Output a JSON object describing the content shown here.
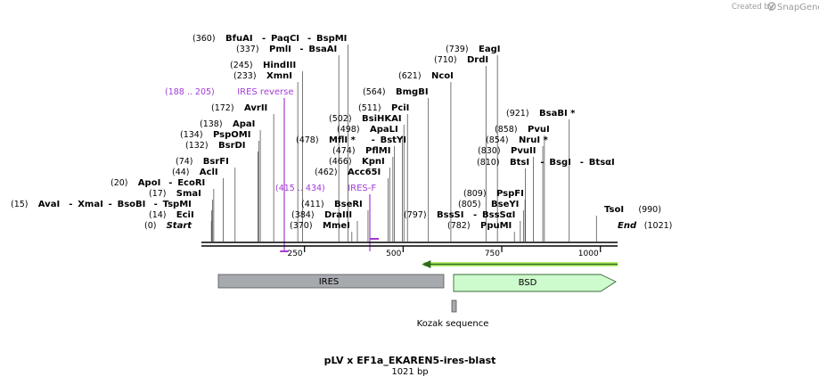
{
  "credit": {
    "text": "Created by",
    "brand": "SnapGene"
  },
  "map": {
    "title": "pLV x EF1a_EKAREN5-ires-blast",
    "length_label": "1021 bp",
    "total_bp": 1021,
    "ticks": [
      {
        "label": "250",
        "bp": 250
      },
      {
        "label": "500",
        "bp": 500
      },
      {
        "label": "750",
        "bp": 750
      },
      {
        "label": "1000",
        "bp": 1000
      }
    ],
    "sites": [
      {
        "id": "start",
        "pos_text": "(0)",
        "names": [
          {
            "text": "Start",
            "italic": true
          }
        ],
        "bp": 0
      },
      {
        "id": "ecoi",
        "pos_text": "(14)",
        "names": [
          {
            "text": "EciI"
          }
        ],
        "bp": 14
      },
      {
        "id": "avai",
        "pos_text": "(15)",
        "names": [
          {
            "text": "AvaI"
          },
          {
            "text": "XmaI"
          },
          {
            "text": "BsoBI"
          },
          {
            "text": "TspMI"
          }
        ],
        "bp": 15
      },
      {
        "id": "smai",
        "pos_text": "(17)",
        "names": [
          {
            "text": "SmaI"
          }
        ],
        "bp": 17
      },
      {
        "id": "apoi",
        "pos_text": "(20)",
        "names": [
          {
            "text": "ApoI"
          },
          {
            "text": "EcoRI"
          }
        ],
        "bp": 20
      },
      {
        "id": "acli",
        "pos_text": "(44)",
        "names": [
          {
            "text": "AclI"
          }
        ],
        "bp": 44
      },
      {
        "id": "bsrfi",
        "pos_text": "(74)",
        "names": [
          {
            "text": "BsrFI"
          }
        ],
        "bp": 74
      },
      {
        "id": "bsrdi",
        "pos_text": "(132)",
        "names": [
          {
            "text": "BsrDI"
          }
        ],
        "bp": 132
      },
      {
        "id": "pspomi",
        "pos_text": "(134)",
        "names": [
          {
            "text": "PspOMI"
          }
        ],
        "bp": 134
      },
      {
        "id": "apai",
        "pos_text": "(138)",
        "names": [
          {
            "text": "ApaI"
          }
        ],
        "bp": 138
      },
      {
        "id": "avrii",
        "pos_text": "(172)",
        "names": [
          {
            "text": "AvrII"
          }
        ],
        "bp": 172
      },
      {
        "id": "xmni",
        "pos_text": "(233)",
        "names": [
          {
            "text": "XmnI"
          }
        ],
        "bp": 233
      },
      {
        "id": "hindiii",
        "pos_text": "(245)",
        "names": [
          {
            "text": "HindIII"
          }
        ],
        "bp": 245
      },
      {
        "id": "pmli",
        "pos_text": "(337)",
        "names": [
          {
            "text": "PmlI"
          },
          {
            "text": "BsaAI"
          }
        ],
        "bp": 337
      },
      {
        "id": "bfuai",
        "pos_text": "(360)",
        "names": [
          {
            "text": "BfuAI"
          },
          {
            "text": "PaqCI"
          },
          {
            "text": "BspMI"
          }
        ],
        "bp": 360
      },
      {
        "id": "mmei",
        "pos_text": "(370)",
        "names": [
          {
            "text": "MmeI"
          }
        ],
        "bp": 370
      },
      {
        "id": "draiii",
        "pos_text": "(384)",
        "names": [
          {
            "text": "DraIII"
          }
        ],
        "bp": 384
      },
      {
        "id": "bseri",
        "pos_text": "(411)",
        "names": [
          {
            "text": "BseRI"
          }
        ],
        "bp": 411
      },
      {
        "id": "acc65i",
        "pos_text": "(462)",
        "names": [
          {
            "text": "Acc65I"
          }
        ],
        "bp": 462
      },
      {
        "id": "kpni",
        "pos_text": "(466)",
        "names": [
          {
            "text": "KpnI"
          }
        ],
        "bp": 466
      },
      {
        "id": "pflmi",
        "pos_text": "(474)",
        "names": [
          {
            "text": "PflMI"
          }
        ],
        "bp": 474
      },
      {
        "id": "mfli",
        "pos_text": "(478)",
        "names": [
          {
            "text": "MflI *"
          },
          {
            "text": "BstYI"
          }
        ],
        "bp": 478
      },
      {
        "id": "apali",
        "pos_text": "(498)",
        "names": [
          {
            "text": "ApaLI"
          }
        ],
        "bp": 498
      },
      {
        "id": "bsihkai",
        "pos_text": "(502)",
        "names": [
          {
            "text": "BsiHKAI"
          }
        ],
        "bp": 502
      },
      {
        "id": "pcii",
        "pos_text": "(511)",
        "names": [
          {
            "text": "PciI"
          }
        ],
        "bp": 511
      },
      {
        "id": "bmgbi",
        "pos_text": "(564)",
        "names": [
          {
            "text": "BmgBI"
          }
        ],
        "bp": 564
      },
      {
        "id": "ncoi",
        "pos_text": "(621)",
        "names": [
          {
            "text": "NcoI"
          }
        ],
        "bp": 621
      },
      {
        "id": "drdi",
        "pos_text": "(710)",
        "names": [
          {
            "text": "DrdI"
          }
        ],
        "bp": 710
      },
      {
        "id": "eagi",
        "pos_text": "(739)",
        "names": [
          {
            "text": "EagI"
          }
        ],
        "bp": 739
      },
      {
        "id": "bsssi",
        "pos_text": "(797)",
        "names": [
          {
            "text": "BssSI"
          },
          {
            "text": "BssSαI"
          }
        ],
        "bp": 797
      },
      {
        "id": "pspfi",
        "pos_text": "(809)",
        "names": [
          {
            "text": "PspFI"
          }
        ],
        "bp": 809
      },
      {
        "id": "bseyi",
        "pos_text": "(805)",
        "names": [
          {
            "text": "BseYI"
          }
        ],
        "bp": 805
      },
      {
        "id": "pspmi",
        "pos_text": "(782)",
        "names": [
          {
            "text": "PpuMI"
          }
        ],
        "bp": 782
      },
      {
        "id": "btsi",
        "pos_text": "(810)",
        "names": [
          {
            "text": "BtsI"
          },
          {
            "text": "BsgI"
          },
          {
            "text": "BtsαI"
          }
        ],
        "bp": 810
      },
      {
        "id": "pvuii",
        "pos_text": "(830)",
        "names": [
          {
            "text": "PvuII"
          }
        ],
        "bp": 830
      },
      {
        "id": "nrui",
        "pos_text": "(854)",
        "names": [
          {
            "text": "NruI *"
          }
        ],
        "bp": 854
      },
      {
        "id": "pvui",
        "pos_text": "(858)",
        "names": [
          {
            "text": "PvuI"
          }
        ],
        "bp": 858
      },
      {
        "id": "bsabi",
        "pos_text": "(921)",
        "names": [
          {
            "text": "BsaBI *"
          }
        ],
        "bp": 921
      },
      {
        "id": "tsoi",
        "pos_text": "(990)",
        "names": [
          {
            "text": "TsoI"
          }
        ],
        "bp": 990
      },
      {
        "id": "end",
        "pos_text": "(1021)",
        "names": [
          {
            "text": "End",
            "italic": true
          }
        ],
        "bp": 1021
      }
    ],
    "primers": [
      {
        "id": "ires-reverse",
        "range_text": "(188 .. 205)",
        "name": "IRES reverse",
        "bp_start": 188,
        "bp_end": 205
      },
      {
        "id": "ires-f",
        "range_text": "(415 .. 434)",
        "name": "IRES-F",
        "bp_start": 415,
        "bp_end": 434
      }
    ],
    "features": [
      {
        "id": "ires",
        "label": "IRES",
        "bp_start": 8,
        "bp_end": 620,
        "color": "#a6a9ae",
        "shape": "box"
      },
      {
        "id": "bsd",
        "label": "BSD",
        "bp_start": 640,
        "bp_end": 1021,
        "color": "#cdfbcd",
        "shape": "arrow"
      },
      {
        "id": "kozak",
        "label": "Kozak sequence",
        "bp_start": 634,
        "bp_end": 643,
        "color": "#a6a9ae",
        "shape": "small"
      }
    ],
    "orf": {
      "bp_start": 552,
      "bp_end": 1021,
      "color": "#2e6b1e",
      "fill": "#b6f06a",
      "direction": "reverse-arrow"
    },
    "colors": {
      "primer": "#a23bd6",
      "axis": "#000000"
    }
  }
}
